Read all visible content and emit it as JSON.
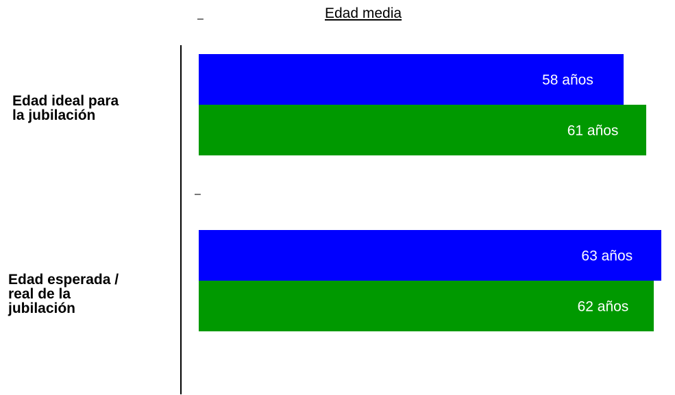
{
  "chart_data": {
    "type": "bar",
    "orientation": "horizontal",
    "title": "Edad media",
    "categories": [
      "Edad ideal para\n  la jubilación",
      "Edad esperada /\n real de la\n jubilación"
    ],
    "series": [
      {
        "values": [
          58,
          63
        ],
        "color": "#0000ff"
      },
      {
        "values": [
          61,
          62
        ],
        "color": "#009900"
      }
    ],
    "data_labels": [
      [
        "58 años",
        "63 años"
      ],
      [
        "61 años",
        "62 años"
      ]
    ],
    "grid": false,
    "legend": "none"
  },
  "decor": {
    "dash_mark": "–"
  }
}
